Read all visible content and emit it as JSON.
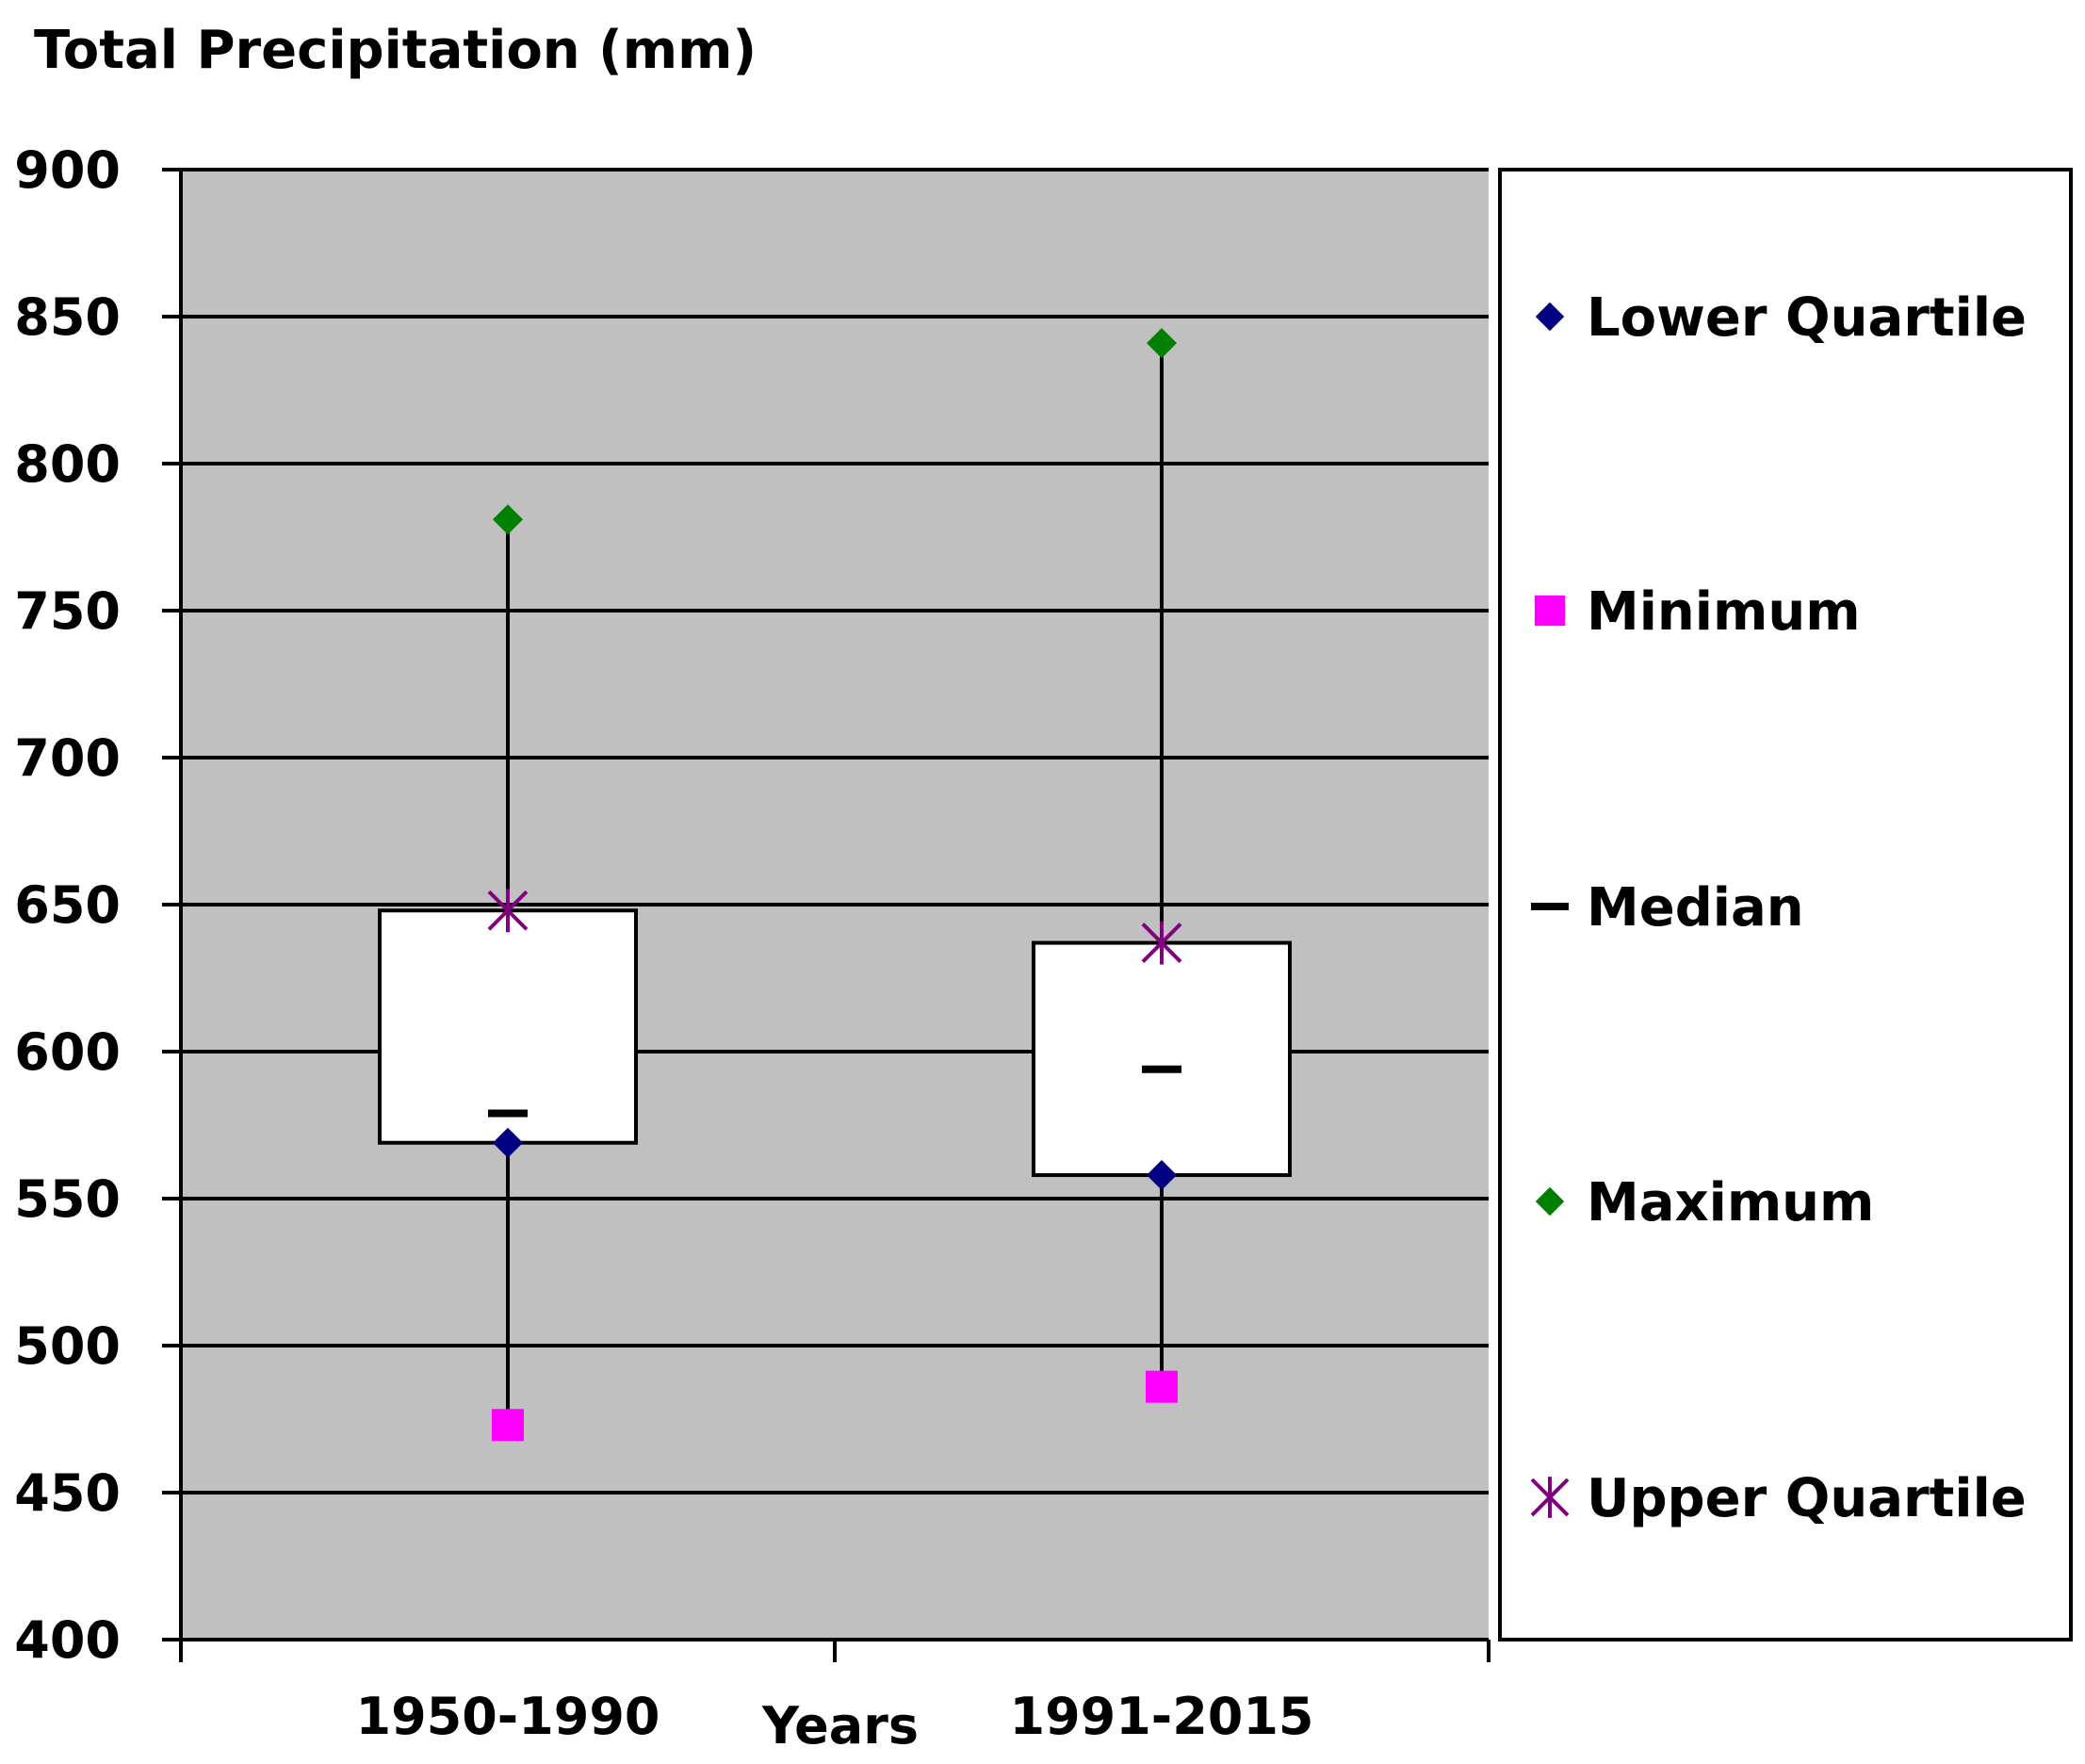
{
  "chart_data": {
    "type": "box",
    "title": "Total Precipitation (mm)",
    "xlabel": "Years",
    "ylabel": "",
    "ylim": [
      400,
      900
    ],
    "yticks": [
      400,
      450,
      500,
      550,
      600,
      650,
      700,
      750,
      800,
      850,
      900
    ],
    "grid": true,
    "legend_position": "right",
    "categories": [
      "1950-1990",
      "1991-2015"
    ],
    "series": [
      {
        "name": "Lower Quartile",
        "marker": "diamond",
        "color": "#000080",
        "values": [
          569,
          558
        ]
      },
      {
        "name": "Minimum",
        "marker": "square",
        "color": "#ff00ff",
        "values": [
          473,
          486
        ]
      },
      {
        "name": "Median",
        "marker": "dash",
        "color": "#000000",
        "values": [
          579,
          594
        ]
      },
      {
        "name": "Maximum",
        "marker": "diamond",
        "color": "#008000",
        "values": [
          781,
          841
        ]
      },
      {
        "name": "Upper Quartile",
        "marker": "star",
        "color": "#800080",
        "values": [
          648,
          637
        ]
      }
    ],
    "plot_background": "#c0c0c0",
    "box_fill": "#ffffff"
  }
}
